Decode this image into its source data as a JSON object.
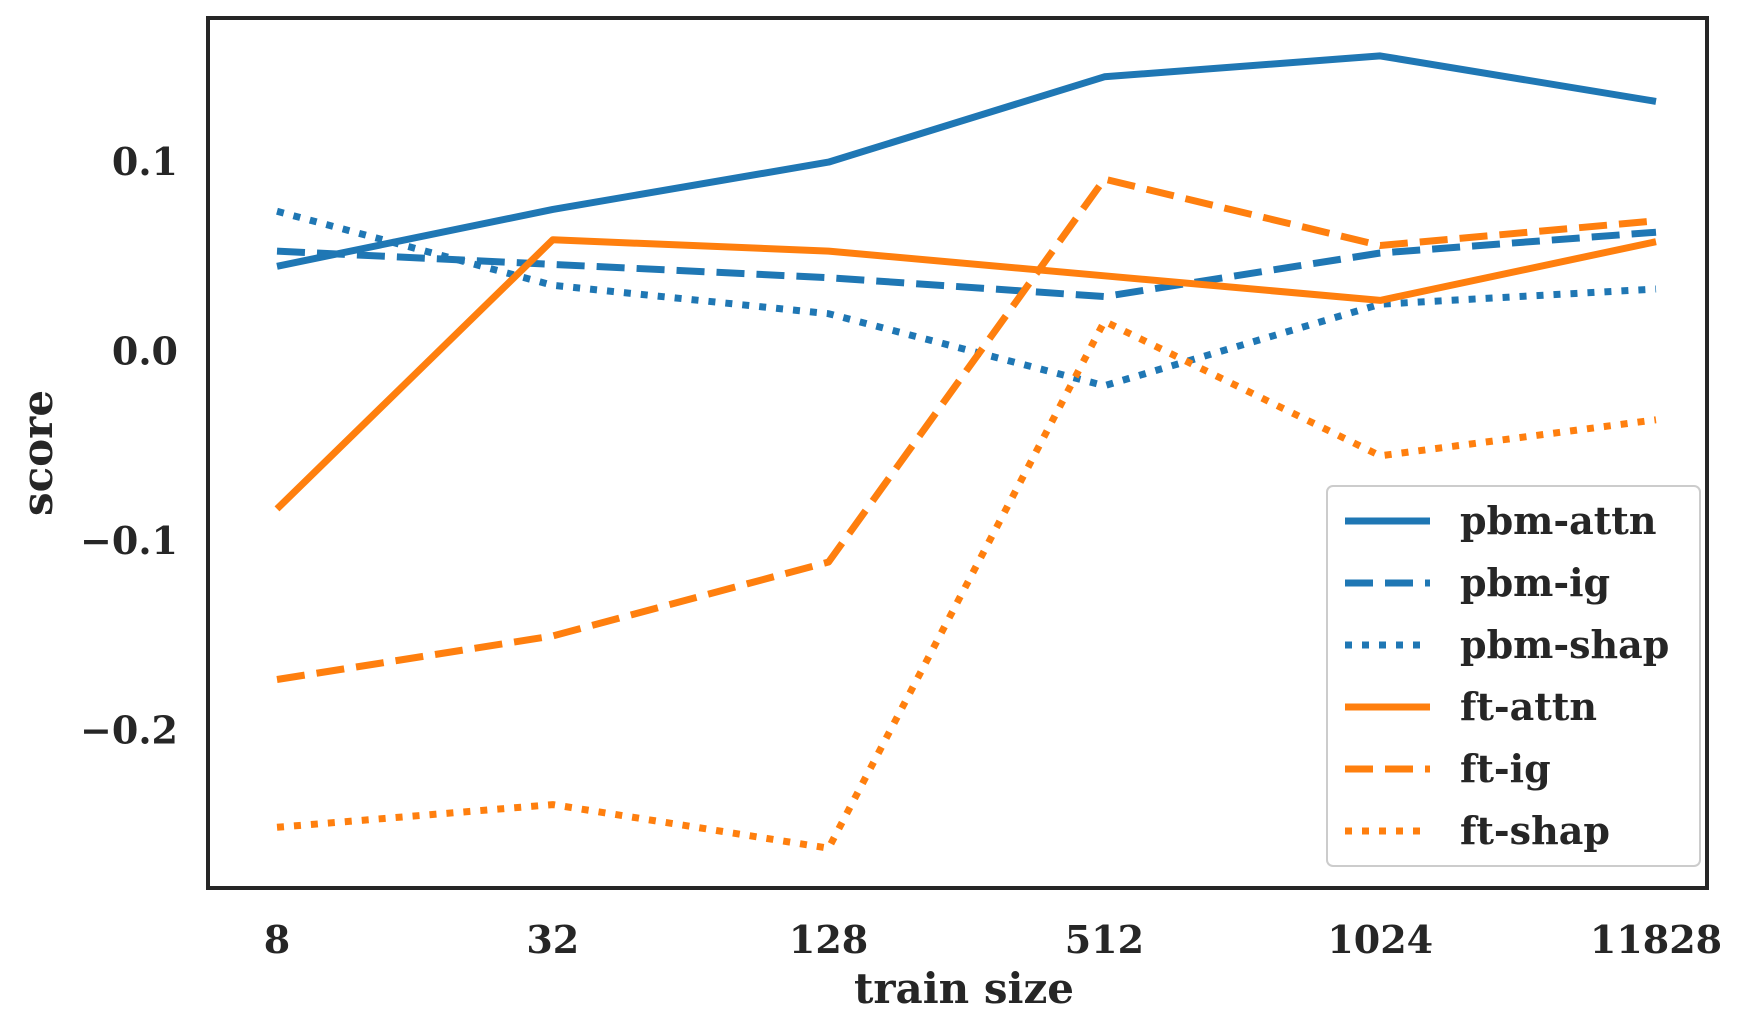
{
  "chart_data": {
    "type": "line",
    "title": "",
    "xlabel": "train size",
    "ylabel": "score",
    "categories": [
      "8",
      "32",
      "128",
      "512",
      "1024",
      "11828"
    ],
    "yticks": [
      -0.2,
      -0.1,
      0.0,
      0.1
    ],
    "ytick_labels": [
      "−0.2",
      "−0.1",
      "0.0",
      "0.1"
    ],
    "ylim": [
      -0.283,
      0.176
    ],
    "grid": false,
    "legend_position": "lower-right",
    "series": [
      {
        "name": "pbm-attn",
        "color": "#1f77b4",
        "dash": "solid",
        "values": [
          0.045,
          0.075,
          0.1,
          0.145,
          0.156,
          0.132
        ]
      },
      {
        "name": "pbm-ig",
        "color": "#1f77b4",
        "dash": "dashed",
        "values": [
          0.053,
          0.046,
          0.039,
          0.029,
          0.052,
          0.063
        ]
      },
      {
        "name": "pbm-shap",
        "color": "#1f77b4",
        "dash": "dotted",
        "values": [
          0.074,
          0.035,
          0.02,
          -0.018,
          0.025,
          0.033
        ]
      },
      {
        "name": "ft-attn",
        "color": "#ff7f0e",
        "dash": "solid",
        "values": [
          -0.083,
          0.059,
          0.053,
          0.04,
          0.027,
          0.058
        ]
      },
      {
        "name": "ft-ig",
        "color": "#ff7f0e",
        "dash": "dashed",
        "values": [
          -0.173,
          -0.15,
          -0.111,
          0.091,
          0.056,
          0.069
        ]
      },
      {
        "name": "ft-shap",
        "color": "#ff7f0e",
        "dash": "dotted",
        "values": [
          -0.251,
          -0.239,
          -0.262,
          0.016,
          -0.055,
          -0.036
        ]
      }
    ]
  }
}
